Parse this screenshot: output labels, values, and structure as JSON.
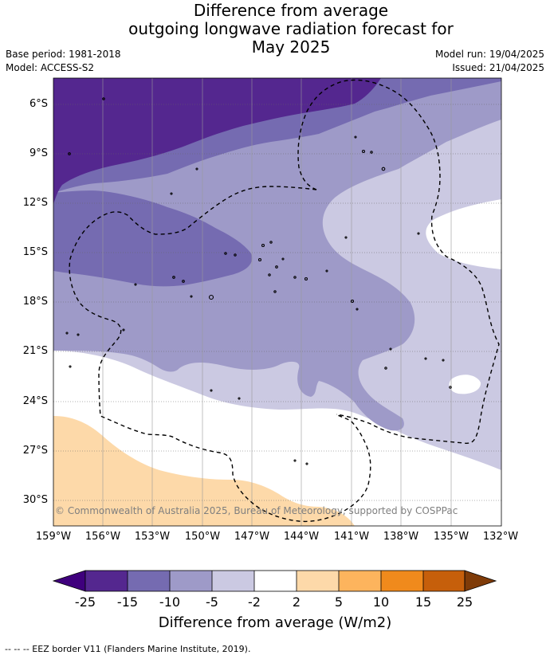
{
  "header": {
    "title_line1": "Difference from average",
    "title_line2": "outgoing longwave radiation forecast for",
    "title_line3": "May 2025",
    "base_period": "Base period: 1981-2018",
    "model": "Model: ACCESS-S2",
    "model_run": "Model run: 19/04/2025",
    "issued": "Issued: 21/04/2025"
  },
  "map": {
    "lat_labels": [
      "6°S",
      "9°S",
      "12°S",
      "15°S",
      "18°S",
      "21°S",
      "24°S",
      "27°S",
      "30°S"
    ],
    "lon_labels": [
      "159°W",
      "156°W",
      "153°W",
      "150°W",
      "147°W",
      "144°W",
      "141°W",
      "138°W",
      "135°W",
      "132°W"
    ],
    "copyright": "© Commonwealth of Australia 2025, Bureau of Meteorology, supported by COSPPac",
    "colors": {
      "lt_-15": "#54278f",
      "-15_-10": "#756bb1",
      "-10_-5": "#9e9ac8",
      "-5_-2": "#cbc9e2",
      "-2_2": "#ffffff",
      "2_5": "#fdd9a9",
      "5_10": "#fdb45d",
      "10_15": "#f08a1c",
      "15_25": "#c65f0b",
      "gt_25": "#7f3b08"
    }
  },
  "colorbar": {
    "tick_labels": [
      "-25",
      "-15",
      "-10",
      "-5",
      "-2",
      "2",
      "5",
      "10",
      "15",
      "25"
    ],
    "title": "Difference from average (W/m2)"
  },
  "footer": {
    "eez_note": "--  --  -- EEZ border V11 (Flanders Marine Institute, 2019)."
  }
}
